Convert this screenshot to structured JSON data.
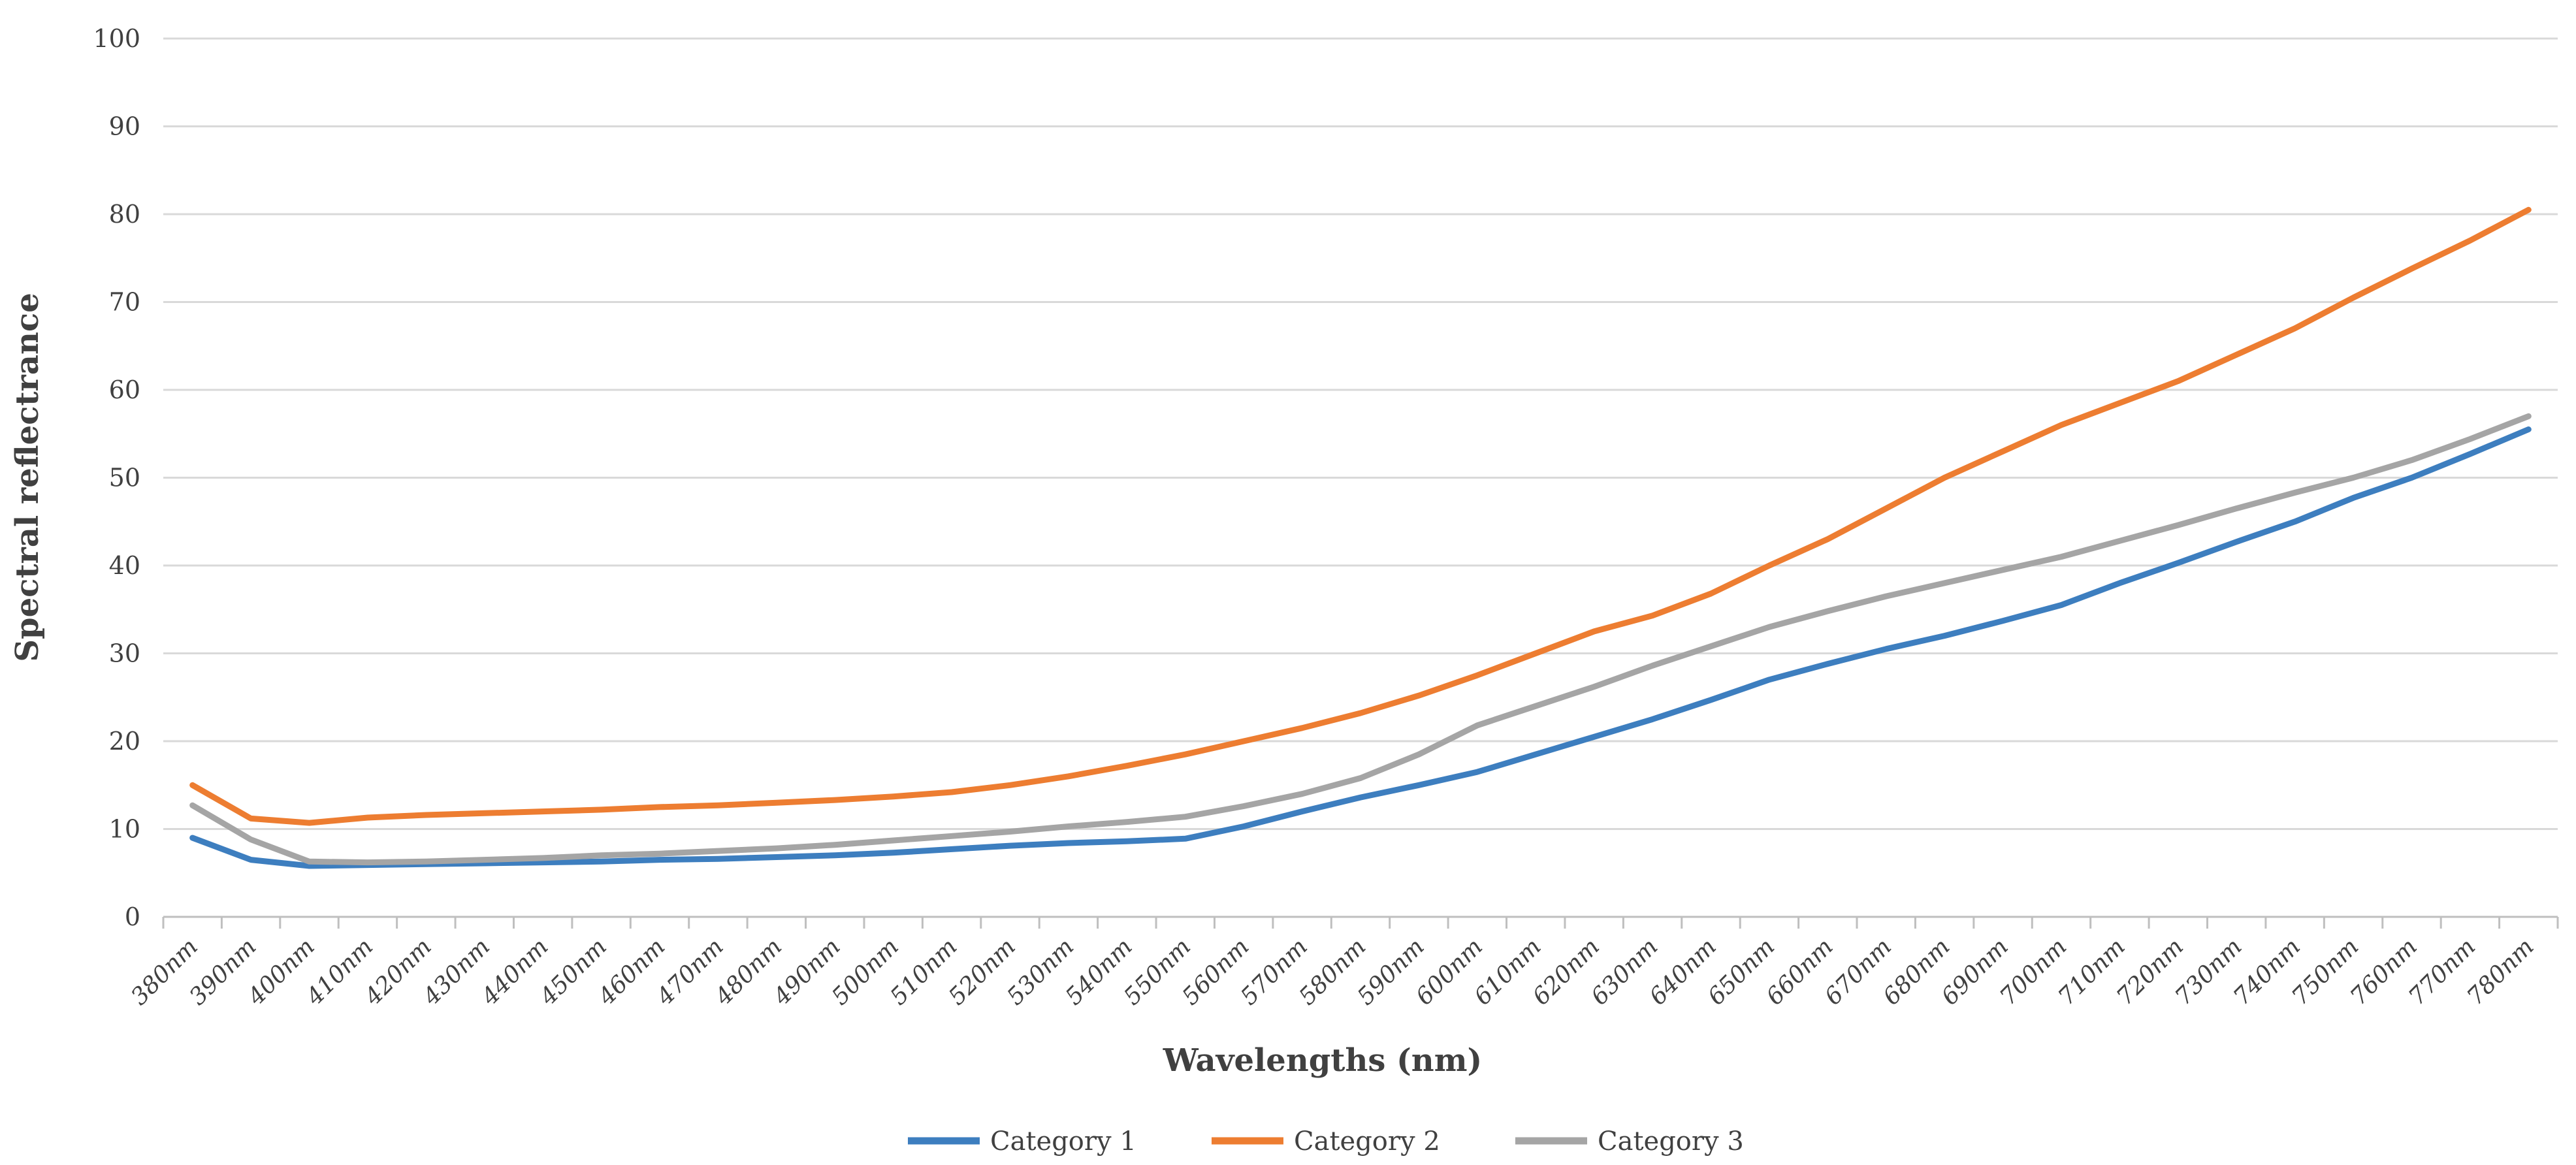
{
  "figure": {
    "background": "#ffffff",
    "text_color": "#404040",
    "gridline_color": "#d9d9d9",
    "axis_line_color": "#bfbfbf"
  },
  "chart_data": {
    "type": "line",
    "title": "",
    "xlabel": "Wavelengths (nm)",
    "ylabel": "Spectral reflectrance",
    "ylim": [
      0,
      100
    ],
    "y_ticks": [
      0,
      10,
      20,
      30,
      40,
      50,
      60,
      70,
      80,
      90,
      100
    ],
    "grid": true,
    "legend_position": "bottom",
    "categories": [
      "380nm",
      "390nm",
      "400nm",
      "410nm",
      "420nm",
      "430nm",
      "440nm",
      "450nm",
      "460nm",
      "470nm",
      "480nm",
      "490nm",
      "500nm",
      "510nm",
      "520nm",
      "530nm",
      "540nm",
      "550nm",
      "560nm",
      "570nm",
      "580nm",
      "590nm",
      "600nm",
      "610nm",
      "620nm",
      "630nm",
      "640nm",
      "650nm",
      "660nm",
      "670nm",
      "680nm",
      "690nm",
      "700nm",
      "710nm",
      "720nm",
      "730nm",
      "740nm",
      "750nm",
      "760nm",
      "770nm",
      "780nm"
    ],
    "series": [
      {
        "name": "Category 1",
        "color": "#3d7ebf",
        "values": [
          9.0,
          6.5,
          5.8,
          5.9,
          6.0,
          6.1,
          6.2,
          6.3,
          6.5,
          6.6,
          6.8,
          7.0,
          7.3,
          7.7,
          8.1,
          8.4,
          8.6,
          8.9,
          10.3,
          12.0,
          13.6,
          15.0,
          16.5,
          18.5,
          20.5,
          22.5,
          24.7,
          27.0,
          28.8,
          30.5,
          32.0,
          33.7,
          35.5,
          38.0,
          40.3,
          42.7,
          45.0,
          47.7,
          50.0,
          52.7,
          55.5
        ]
      },
      {
        "name": "Category 2",
        "color": "#ed7d31",
        "values": [
          15.0,
          11.2,
          10.7,
          11.3,
          11.6,
          11.8,
          12.0,
          12.2,
          12.5,
          12.7,
          13.0,
          13.3,
          13.7,
          14.2,
          15.0,
          16.0,
          17.2,
          18.5,
          20.0,
          21.5,
          23.2,
          25.2,
          27.5,
          30.0,
          32.5,
          34.3,
          36.8,
          40.0,
          43.0,
          46.5,
          50.0,
          53.0,
          56.0,
          58.5,
          61.0,
          64.0,
          67.0,
          70.5,
          73.8,
          77.0,
          80.5
        ]
      },
      {
        "name": "Category 3",
        "color": "#a5a5a5",
        "values": [
          12.7,
          8.8,
          6.3,
          6.2,
          6.3,
          6.5,
          6.7,
          7.0,
          7.2,
          7.5,
          7.8,
          8.2,
          8.7,
          9.2,
          9.7,
          10.3,
          10.8,
          11.4,
          12.6,
          14.0,
          15.8,
          18.5,
          21.8,
          24.0,
          26.2,
          28.6,
          30.8,
          33.0,
          34.8,
          36.5,
          38.0,
          39.5,
          41.0,
          42.8,
          44.6,
          46.5,
          48.3,
          50.0,
          52.0,
          54.4,
          57.0
        ]
      }
    ]
  }
}
